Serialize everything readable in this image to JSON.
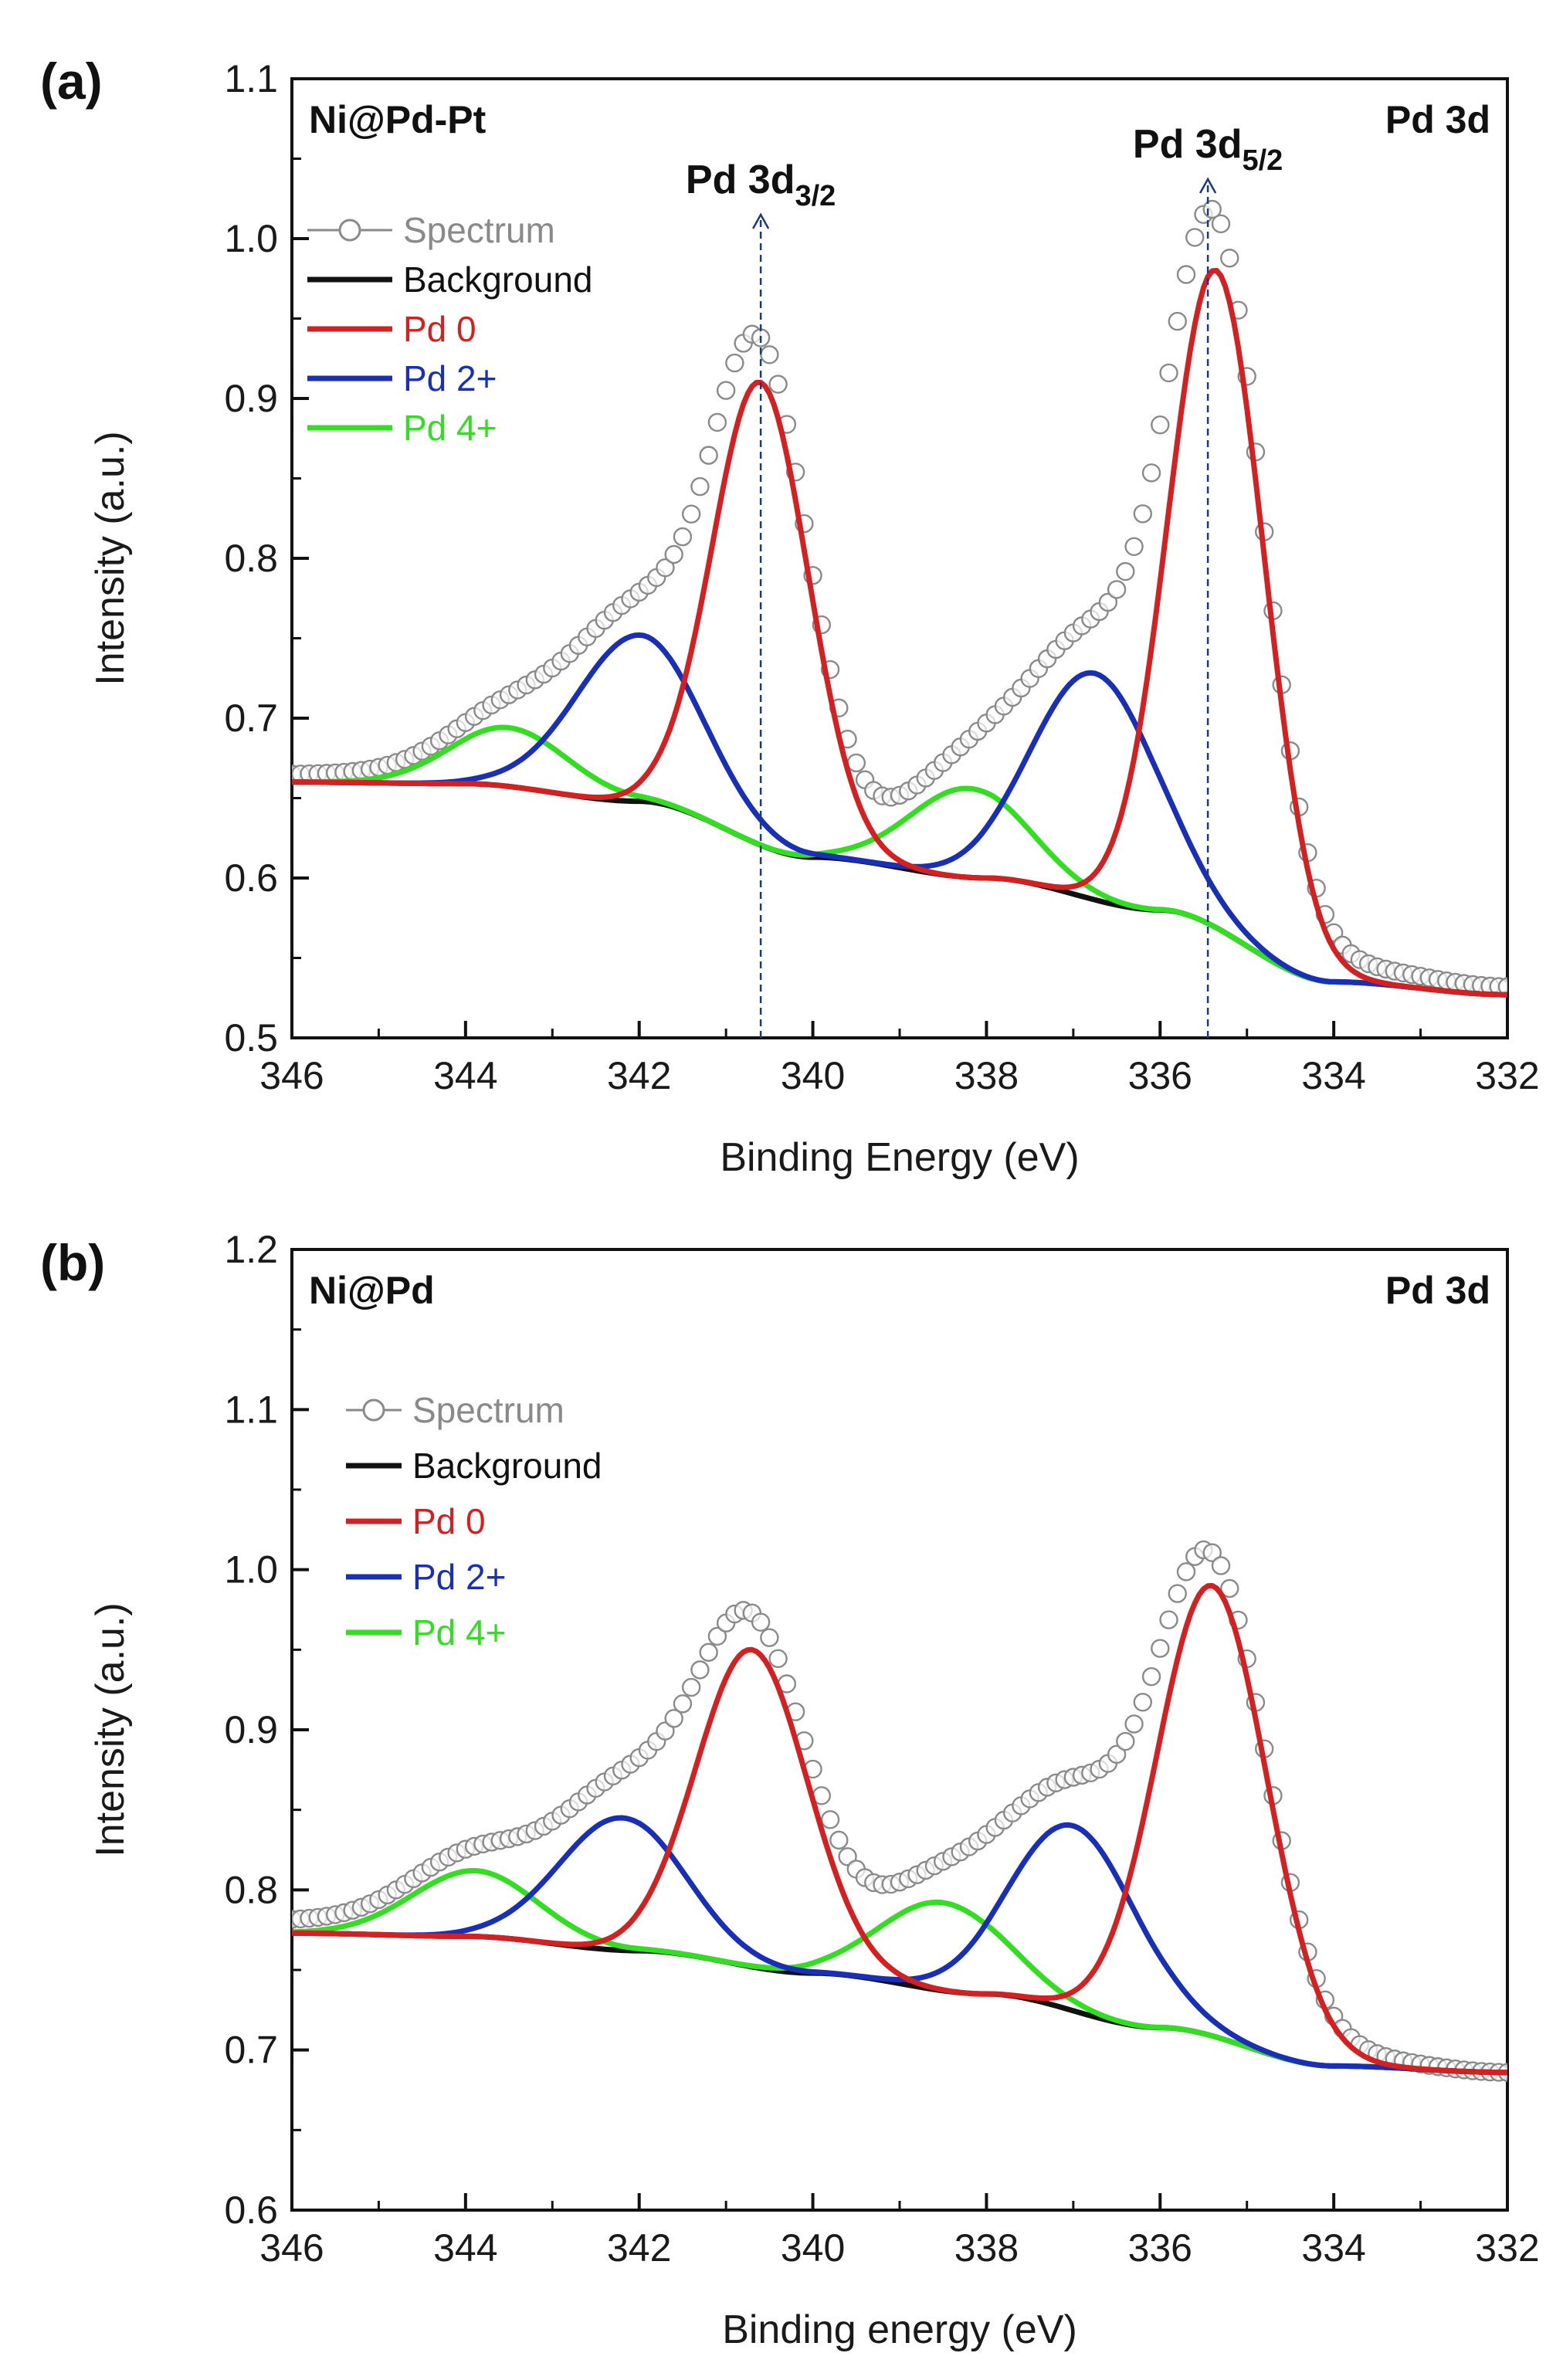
{
  "chart_data": [
    {
      "type": "line",
      "panel": "(a)",
      "sample": "Ni@Pd-Pt",
      "region": "Pd 3d",
      "xlabel": "Binding Energy (eV)",
      "ylabel": "Intensity (a.u.)",
      "xlim": [
        346,
        332
      ],
      "ylim": [
        0.5,
        1.1
      ],
      "xticks": [
        346,
        344,
        342,
        340,
        338,
        336,
        334,
        332
      ],
      "yticks": [
        0.5,
        0.6,
        0.7,
        0.8,
        0.9,
        1.0,
        1.1
      ],
      "ytick_labels": [
        "0.5",
        "0.6",
        "0.7",
        "0.8",
        "0.9",
        "1.0",
        "1.1"
      ],
      "background": {
        "high": 0.66,
        "low": 0.527,
        "knots": [
          [
            346,
            0.66
          ],
          [
            344,
            0.659
          ],
          [
            342,
            0.648
          ],
          [
            340,
            0.613
          ],
          [
            338,
            0.6
          ],
          [
            336,
            0.58
          ],
          [
            334,
            0.535
          ],
          [
            332,
            0.527
          ]
        ]
      },
      "components": [
        {
          "name": "Pd 0",
          "color": "#d42020",
          "peaks": [
            {
              "center": 340.6,
              "height": 0.91,
              "fwhm": 1.3
            },
            {
              "center": 335.35,
              "height": 0.98,
              "fwhm": 1.3
            }
          ]
        },
        {
          "name": "Pd 2+",
          "color": "#1a2fb8",
          "peaks": [
            {
              "center": 342.0,
              "height": 0.752,
              "fwhm": 1.7
            },
            {
              "center": 336.75,
              "height": 0.728,
              "fwhm": 1.7
            }
          ]
        },
        {
          "name": "Pd 4+",
          "color": "#33dd22",
          "peaks": [
            {
              "center": 343.5,
              "height": 0.694,
              "fwhm": 1.6
            },
            {
              "center": 338.2,
              "height": 0.656,
              "fwhm": 1.6
            }
          ]
        }
      ],
      "spectrum": {
        "name": "Spectrum",
        "color": "#8a8a8a",
        "x_start": 346,
        "x_end": 332,
        "step": 0.1,
        "offsets": [
          [
            346,
            0.005
          ],
          [
            344,
            0.008
          ],
          [
            342,
            0.012
          ],
          [
            340,
            0.012
          ],
          [
            338,
            0.012
          ],
          [
            336,
            0.015
          ],
          [
            334,
            0.01
          ],
          [
            332,
            0.005
          ]
        ]
      },
      "legend": [
        "Spectrum",
        "Background",
        "Pd 0",
        "Pd 2+",
        "Pd 4+"
      ],
      "annotations": [
        {
          "prefix": "Pd 3d",
          "subscript": "3/2",
          "x": 340.6
        },
        {
          "prefix": "Pd 3d",
          "subscript": "5/2",
          "x": 335.45
        }
      ]
    },
    {
      "type": "line",
      "panel": "(b)",
      "sample": "Ni@Pd",
      "region": "Pd 3d",
      "xlabel": "Binding energy (eV)",
      "ylabel": "Intensity (a.u.)",
      "xlim": [
        346,
        332
      ],
      "ylim": [
        0.6,
        1.2
      ],
      "xticks": [
        346,
        344,
        342,
        340,
        338,
        336,
        334,
        332
      ],
      "yticks": [
        0.6,
        0.7,
        0.8,
        0.9,
        1.0,
        1.1,
        1.2
      ],
      "ytick_labels": [
        "0.6",
        "0.7",
        "0.8",
        "0.9",
        "1.0",
        "1.1",
        "1.2"
      ],
      "background": {
        "high": 0.773,
        "low": 0.686,
        "knots": [
          [
            346,
            0.773
          ],
          [
            344,
            0.771
          ],
          [
            342,
            0.762
          ],
          [
            340,
            0.748
          ],
          [
            338,
            0.735
          ],
          [
            336,
            0.714
          ],
          [
            334,
            0.69
          ],
          [
            332,
            0.686
          ]
        ]
      },
      "components": [
        {
          "name": "Pd 0",
          "color": "#d42020",
          "peaks": [
            {
              "center": 340.7,
              "height": 0.95,
              "fwhm": 1.5
            },
            {
              "center": 335.4,
              "height": 0.99,
              "fwhm": 1.5
            }
          ]
        },
        {
          "name": "Pd 2+",
          "color": "#1a2fb8",
          "peaks": [
            {
              "center": 342.2,
              "height": 0.845,
              "fwhm": 1.7
            },
            {
              "center": 337.0,
              "height": 0.84,
              "fwhm": 1.7
            }
          ]
        },
        {
          "name": "Pd 4+",
          "color": "#33dd22",
          "peaks": [
            {
              "center": 343.9,
              "height": 0.812,
              "fwhm": 1.7
            },
            {
              "center": 338.5,
              "height": 0.792,
              "fwhm": 1.7
            }
          ]
        }
      ],
      "spectrum": {
        "name": "Spectrum",
        "color": "#8a8a8a",
        "x_start": 346,
        "x_end": 332,
        "step": 0.1,
        "offsets": [
          [
            346,
            0.008
          ],
          [
            344,
            0.01
          ],
          [
            342,
            0.015
          ],
          [
            340,
            0.012
          ],
          [
            338,
            0.012
          ],
          [
            336,
            0.012
          ],
          [
            334,
            0.006
          ],
          [
            332,
            0.0
          ]
        ]
      },
      "legend": [
        "Spectrum",
        "Background",
        "Pd 0",
        "Pd 2+",
        "Pd 4+"
      ],
      "annotations": []
    }
  ]
}
